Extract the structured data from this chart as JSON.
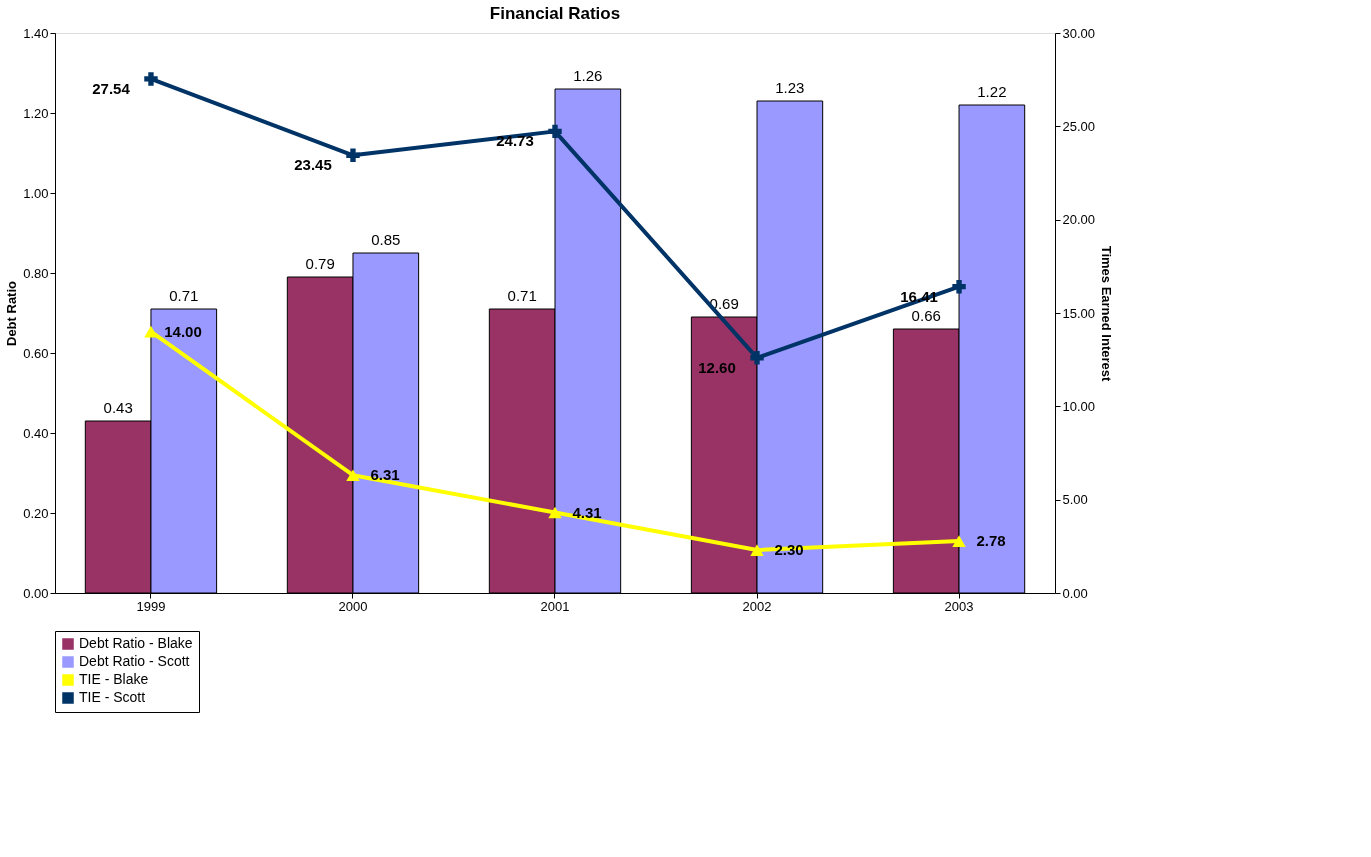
{
  "chart_data": {
    "type": "bar",
    "title": "Financial Ratios",
    "ylabel": "Debt Ratio",
    "y2label": "Times Earned Interest",
    "categories": [
      "1999",
      "2000",
      "2001",
      "2002",
      "2003"
    ],
    "series": [
      {
        "name": "Debt Ratio - Blake",
        "color": "#993366",
        "values": [
          0.43,
          0.79,
          0.71,
          0.69,
          0.66
        ]
      },
      {
        "name": "Debt Ratio - Scott",
        "color": "#9999ff",
        "values": [
          0.71,
          0.85,
          1.26,
          1.23,
          1.22
        ]
      },
      {
        "name": "TIE - Blake",
        "color": "#ffff00",
        "type": "line",
        "axis": "y2",
        "marker": "triangle",
        "values": [
          14.0,
          6.31,
          4.31,
          2.3,
          2.78
        ],
        "value_labels": [
          "14.00",
          "6.31",
          "4.31",
          "2.30",
          "2.78"
        ]
      },
      {
        "name": "TIE - Scott",
        "color": "#003366",
        "type": "line",
        "axis": "y2",
        "marker": "cross",
        "values": [
          27.54,
          23.45,
          24.73,
          12.6,
          16.41
        ],
        "value_labels": [
          "27.54",
          "23.45",
          "24.73",
          "12.60",
          "16.41"
        ]
      }
    ],
    "ylim": [
      0,
      1.4
    ],
    "yticks": [
      {
        "value": 0,
        "label": "0.00"
      },
      {
        "value": 0.2,
        "label": "0.20"
      },
      {
        "value": 0.4,
        "label": "0.40"
      },
      {
        "value": 0.6,
        "label": "0.60"
      },
      {
        "value": 0.8,
        "label": "0.80"
      },
      {
        "value": 1.0,
        "label": "1.00"
      },
      {
        "value": 1.2,
        "label": "1.20"
      },
      {
        "value": 1.4,
        "label": "1.40"
      }
    ],
    "y2lim": [
      0,
      30
    ],
    "y2ticks": [
      {
        "value": 0,
        "label": "0.00"
      },
      {
        "value": 5,
        "label": "5.00"
      },
      {
        "value": 10,
        "label": "10.00"
      },
      {
        "value": 15,
        "label": "15.00"
      },
      {
        "value": 20,
        "label": "20.00"
      },
      {
        "value": 25,
        "label": "25.00"
      },
      {
        "value": 30,
        "label": "30.00"
      }
    ],
    "data_labels": true,
    "legend": "bottom"
  }
}
